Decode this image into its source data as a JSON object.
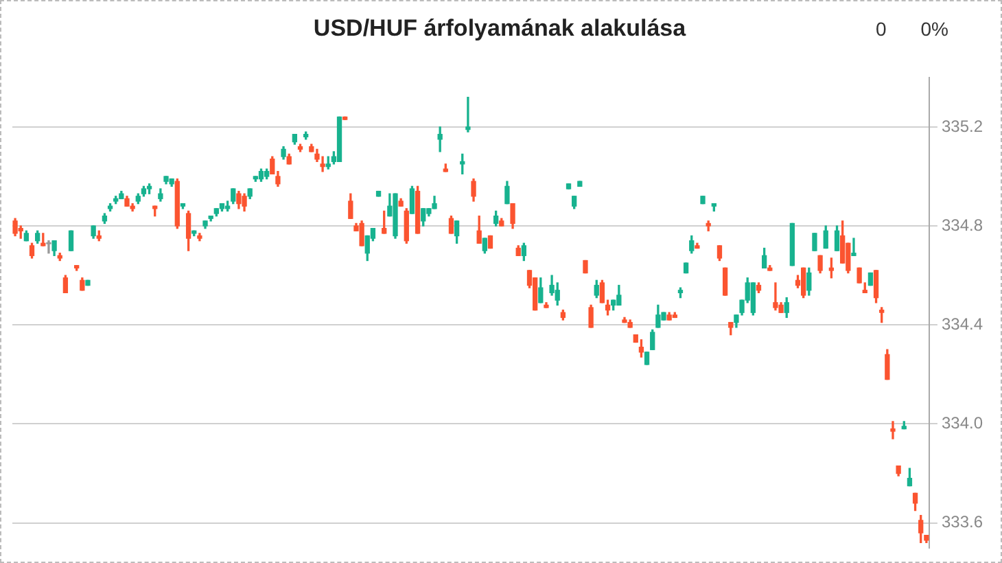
{
  "chart_data": {
    "type": "candlestick",
    "title": "USD/HUF árfolyamának alakulása",
    "annotations": [
      "0",
      "0%"
    ],
    "tick_labels": "y",
    "grid": "y",
    "ylim": [
      333.5,
      335.4
    ],
    "yticks": [
      {
        "value": 333.6,
        "label": "333.6"
      },
      {
        "value": 334,
        "label": "334.0"
      },
      {
        "value": 334.4,
        "label": "334.4"
      },
      {
        "value": 334.8,
        "label": "334.8"
      },
      {
        "value": 335.2,
        "label": "335.2"
      }
    ],
    "categories": [
      null,
      null,
      null,
      null,
      null,
      null,
      null,
      null,
      null,
      null,
      null,
      null,
      null,
      null,
      null,
      null,
      null,
      null,
      null,
      null,
      null,
      null,
      null,
      null,
      null,
      null,
      null,
      null,
      null,
      null,
      null,
      null,
      null,
      null,
      null,
      null,
      null,
      null,
      null,
      null,
      null,
      null,
      null,
      null,
      null,
      null,
      null,
      null,
      null,
      null,
      null,
      null,
      null,
      null,
      null,
      null,
      null,
      null,
      null,
      null,
      null,
      null,
      null,
      null,
      null,
      null,
      null,
      null,
      null,
      null,
      null,
      null,
      null,
      null,
      null,
      null,
      null,
      null,
      null,
      null,
      null,
      null,
      null,
      null,
      null,
      null,
      null,
      null,
      null,
      null,
      null,
      null,
      null,
      null,
      null,
      null,
      null,
      null,
      null,
      null,
      null,
      null,
      null,
      null,
      null,
      null,
      null,
      null,
      null,
      null,
      null,
      null,
      null,
      null,
      null,
      null,
      null,
      null,
      null,
      null,
      null,
      null,
      null,
      null,
      null,
      null,
      null,
      null,
      null,
      null,
      null,
      null,
      null,
      null,
      null,
      null,
      null,
      null,
      null,
      null,
      null,
      null,
      null,
      null,
      null,
      null,
      null,
      null,
      null,
      null,
      null,
      null,
      null,
      null,
      null,
      null,
      null,
      null,
      null,
      null,
      null,
      null,
      null,
      null
    ],
    "ohlc": [
      [
        334.82,
        334.83,
        334.76,
        334.77
      ],
      [
        334.79,
        334.8,
        334.75,
        334.78
      ],
      [
        334.74,
        334.78,
        334.74,
        334.77
      ],
      [
        334.72,
        334.73,
        334.67,
        334.68
      ],
      [
        334.74,
        334.78,
        334.73,
        334.77
      ],
      [
        334.73,
        334.77,
        334.72,
        334.72
      ],
      [
        334.73,
        334.74,
        334.69,
        334.73
      ],
      [
        334.7,
        334.74,
        334.68,
        334.74
      ],
      [
        334.68,
        334.69,
        334.66,
        334.67
      ],
      [
        334.59,
        334.6,
        334.53,
        334.53
      ],
      [
        334.7,
        334.78,
        334.7,
        334.78
      ],
      [
        334.64,
        334.64,
        334.62,
        334.63
      ],
      [
        334.58,
        334.59,
        334.54,
        334.54
      ],
      [
        334.56,
        334.58,
        334.56,
        334.58
      ],
      [
        334.76,
        334.8,
        334.75,
        334.8
      ],
      [
        334.76,
        334.78,
        334.74,
        334.75
      ],
      [
        334.82,
        334.85,
        334.81,
        334.84
      ],
      [
        334.87,
        334.89,
        334.86,
        334.88
      ],
      [
        334.9,
        334.92,
        334.89,
        334.91
      ],
      [
        334.91,
        334.94,
        334.91,
        334.93
      ],
      [
        334.91,
        334.92,
        334.88,
        334.88
      ],
      [
        334.88,
        334.89,
        334.86,
        334.87
      ],
      [
        334.9,
        334.93,
        334.89,
        334.92
      ],
      [
        334.93,
        334.96,
        334.92,
        334.95
      ],
      [
        334.95,
        334.97,
        334.93,
        334.96
      ],
      [
        334.88,
        334.88,
        334.84,
        334.87
      ],
      [
        334.91,
        334.95,
        334.9,
        334.93
      ],
      [
        334.98,
        335.0,
        334.97,
        335.0
      ],
      [
        334.97,
        334.99,
        334.96,
        334.99
      ],
      [
        334.98,
        334.99,
        334.79,
        334.8
      ],
      [
        334.88,
        334.89,
        334.87,
        334.89
      ],
      [
        334.85,
        334.86,
        334.7,
        334.75
      ],
      [
        334.77,
        334.78,
        334.76,
        334.78
      ],
      [
        334.76,
        334.77,
        334.74,
        334.75
      ],
      [
        334.8,
        334.82,
        334.79,
        334.82
      ],
      [
        334.83,
        334.84,
        334.82,
        334.84
      ],
      [
        334.85,
        334.87,
        334.84,
        334.87
      ],
      [
        334.87,
        334.89,
        334.86,
        334.89
      ],
      [
        334.87,
        334.9,
        334.86,
        334.88
      ],
      [
        334.9,
        334.95,
        334.89,
        334.95
      ],
      [
        334.93,
        334.94,
        334.87,
        334.89
      ],
      [
        334.92,
        334.93,
        334.86,
        334.88
      ],
      [
        334.92,
        334.95,
        334.91,
        334.95
      ],
      [
        334.99,
        335.0,
        334.98,
        335.0
      ],
      [
        334.99,
        335.03,
        334.98,
        335.02
      ],
      [
        335.0,
        335.03,
        334.99,
        335.02
      ],
      [
        335.07,
        335.08,
        335.01,
        335.01
      ],
      [
        335.0,
        335.02,
        334.96,
        334.97
      ],
      [
        335.08,
        335.12,
        335.07,
        335.11
      ],
      [
        335.08,
        335.09,
        335.05,
        335.05
      ],
      [
        335.14,
        335.17,
        335.13,
        335.17
      ],
      [
        335.12,
        335.13,
        335.1,
        335.11
      ],
      [
        335.16,
        335.18,
        335.15,
        335.17
      ],
      [
        335.12,
        335.13,
        335.1,
        335.1
      ],
      [
        335.09,
        335.11,
        335.06,
        335.07
      ],
      [
        335.05,
        335.08,
        335.02,
        335.04
      ],
      [
        335.04,
        335.08,
        335.03,
        335.05
      ],
      [
        335.06,
        335.1,
        335.05,
        335.08
      ],
      [
        335.06,
        335.24,
        335.06,
        335.24
      ],
      [
        335.24,
        335.24,
        335.23,
        335.23
      ],
      [
        334.9,
        334.93,
        334.83,
        334.83
      ],
      [
        334.8,
        334.81,
        334.78,
        334.78
      ],
      [
        334.81,
        334.82,
        334.72,
        334.72
      ],
      [
        334.69,
        334.76,
        334.66,
        334.76
      ],
      [
        334.75,
        334.79,
        334.74,
        334.79
      ],
      [
        334.92,
        334.94,
        334.92,
        334.94
      ],
      [
        334.79,
        334.86,
        334.77,
        334.77
      ],
      [
        334.84,
        334.93,
        334.84,
        334.88
      ],
      [
        334.76,
        334.93,
        334.75,
        334.93
      ],
      [
        334.9,
        334.91,
        334.88,
        334.88
      ],
      [
        334.86,
        334.87,
        334.73,
        334.74
      ],
      [
        334.85,
        334.96,
        334.85,
        334.95
      ],
      [
        334.94,
        334.96,
        334.77,
        334.77
      ],
      [
        334.82,
        334.87,
        334.8,
        334.87
      ],
      [
        334.85,
        334.87,
        334.84,
        334.87
      ],
      [
        334.87,
        334.92,
        334.87,
        334.89
      ],
      [
        335.15,
        335.2,
        335.1,
        335.17
      ],
      [
        335.03,
        335.05,
        335.02,
        335.02
      ],
      [
        334.83,
        334.84,
        334.77,
        334.77
      ],
      [
        334.76,
        334.82,
        334.73,
        334.82
      ],
      [
        335.05,
        335.09,
        335.01,
        335.06
      ],
      [
        335.19,
        335.32,
        335.18,
        335.2
      ],
      [
        334.98,
        334.99,
        334.9,
        334.92
      ],
      [
        334.78,
        334.84,
        334.73,
        334.73
      ],
      [
        334.7,
        334.75,
        334.69,
        334.75
      ],
      [
        334.76,
        334.76,
        334.71,
        334.71
      ],
      [
        334.81,
        334.86,
        334.8,
        334.84
      ],
      [
        334.82,
        334.83,
        334.8,
        334.8
      ],
      [
        334.89,
        334.98,
        334.89,
        334.96
      ],
      [
        334.89,
        334.89,
        334.79,
        334.81
      ],
      [
        334.71,
        334.72,
        334.68,
        334.68
      ],
      [
        334.68,
        334.73,
        334.66,
        334.72
      ],
      [
        334.62,
        334.62,
        334.55,
        334.56
      ],
      [
        334.59,
        334.59,
        334.46,
        334.46
      ],
      [
        334.49,
        334.59,
        334.49,
        334.55
      ],
      [
        334.48,
        334.49,
        334.47,
        334.47
      ],
      [
        334.53,
        334.6,
        334.52,
        334.56
      ],
      [
        334.5,
        334.57,
        334.48,
        334.54
      ],
      [
        334.45,
        334.46,
        334.42,
        334.43
      ],
      [
        334.95,
        334.97,
        334.95,
        334.97
      ],
      [
        334.88,
        334.92,
        334.87,
        334.92
      ],
      [
        334.96,
        334.98,
        334.96,
        334.98
      ],
      [
        334.66,
        334.66,
        334.61,
        334.61
      ],
      [
        334.47,
        334.48,
        334.39,
        334.39
      ],
      [
        334.52,
        334.58,
        334.51,
        334.56
      ],
      [
        334.57,
        334.58,
        334.49,
        334.49
      ],
      [
        334.48,
        334.5,
        334.44,
        334.46
      ],
      [
        334.48,
        334.5,
        334.46,
        334.5
      ],
      [
        334.48,
        334.56,
        334.48,
        334.52
      ],
      [
        334.42,
        334.43,
        334.41,
        334.41
      ],
      [
        334.41,
        334.42,
        334.39,
        334.39
      ],
      [
        334.36,
        334.36,
        334.33,
        334.33
      ],
      [
        334.31,
        334.34,
        334.27,
        334.29
      ],
      [
        334.24,
        334.29,
        334.24,
        334.29
      ],
      [
        334.3,
        334.38,
        334.3,
        334.37
      ],
      [
        334.39,
        334.48,
        334.39,
        334.44
      ],
      [
        334.42,
        334.45,
        334.42,
        334.45
      ],
      [
        334.44,
        334.45,
        334.42,
        334.42
      ],
      [
        334.44,
        334.45,
        334.43,
        334.43
      ],
      [
        334.53,
        334.55,
        334.51,
        334.54
      ],
      [
        334.61,
        334.65,
        334.61,
        334.65
      ],
      [
        334.7,
        334.76,
        334.69,
        334.74
      ],
      [
        334.72,
        334.73,
        334.71,
        334.71
      ],
      [
        334.89,
        334.92,
        334.89,
        334.92
      ],
      [
        334.81,
        334.82,
        334.78,
        334.8
      ],
      [
        334.88,
        334.89,
        334.86,
        334.89
      ],
      [
        334.72,
        334.72,
        334.66,
        334.67
      ],
      [
        334.63,
        334.63,
        334.52,
        334.52
      ],
      [
        334.41,
        334.41,
        334.36,
        334.39
      ],
      [
        334.41,
        334.44,
        334.39,
        334.44
      ],
      [
        334.45,
        334.5,
        334.44,
        334.5
      ],
      [
        334.5,
        334.59,
        334.49,
        334.57
      ],
      [
        334.45,
        334.57,
        334.44,
        334.57
      ],
      [
        334.56,
        334.57,
        334.53,
        334.54
      ],
      [
        334.63,
        334.71,
        334.63,
        334.68
      ],
      [
        334.63,
        334.64,
        334.62,
        334.62
      ],
      [
        334.49,
        334.57,
        334.46,
        334.47
      ],
      [
        334.48,
        334.49,
        334.45,
        334.45
      ],
      [
        334.45,
        334.51,
        334.43,
        334.49
      ],
      [
        334.64,
        334.81,
        334.64,
        334.81
      ],
      [
        334.58,
        334.6,
        334.55,
        334.56
      ],
      [
        334.63,
        334.63,
        334.51,
        334.52
      ],
      [
        334.54,
        334.63,
        334.52,
        334.61
      ],
      [
        334.7,
        334.77,
        334.7,
        334.77
      ],
      [
        334.68,
        334.68,
        334.61,
        334.62
      ],
      [
        334.71,
        334.8,
        334.71,
        334.78
      ],
      [
        334.63,
        334.67,
        334.59,
        334.62
      ],
      [
        334.7,
        334.8,
        334.7,
        334.78
      ],
      [
        334.76,
        334.82,
        334.65,
        334.65
      ],
      [
        334.73,
        334.73,
        334.61,
        334.62
      ],
      [
        334.68,
        334.75,
        334.68,
        334.69
      ],
      [
        334.63,
        334.63,
        334.57,
        334.57
      ],
      [
        334.54,
        334.57,
        334.53,
        334.53
      ],
      [
        334.56,
        334.61,
        334.56,
        334.61
      ],
      [
        334.62,
        334.62,
        334.49,
        334.51
      ],
      [
        334.46,
        334.47,
        334.41,
        334.45
      ],
      [
        334.28,
        334.3,
        334.18,
        334.18
      ],
      [
        333.98,
        334.01,
        333.94,
        333.97
      ],
      [
        333.83,
        333.83,
        333.79,
        333.8
      ],
      [
        333.98,
        334.01,
        333.98,
        333.99
      ],
      [
        333.75,
        333.82,
        333.75,
        333.78
      ],
      [
        333.72,
        333.72,
        333.65,
        333.68
      ],
      [
        333.61,
        333.63,
        333.52,
        333.56
      ],
      [
        333.55,
        333.55,
        333.52,
        333.53
      ]
    ]
  }
}
